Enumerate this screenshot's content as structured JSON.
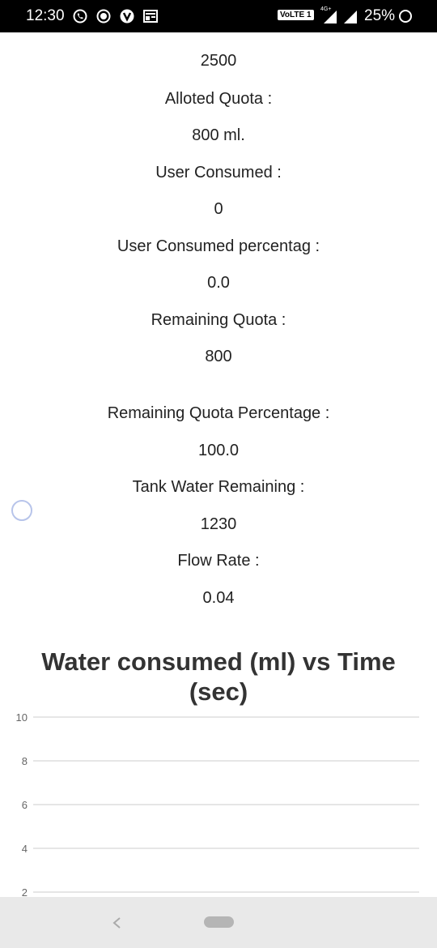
{
  "status_bar": {
    "time": "12:30",
    "network": "VoLTE 1",
    "network_type": "4G+",
    "battery": "25%",
    "icons": [
      "whatsapp-icon",
      "record-icon",
      "vpn-icon",
      "news-icon",
      "signal-icon",
      "battery-icon"
    ]
  },
  "info": {
    "capacity_value": "2500",
    "alloted_quota_label": "Alloted Quota :",
    "alloted_quota_value": "800 ml.",
    "user_consumed_label": "User Consumed :",
    "user_consumed_value": "0",
    "user_consumed_pct_label": "User Consumed percentag :",
    "user_consumed_pct_value": "0.0",
    "remaining_quota_label": "Remaining Quota :",
    "remaining_quota_value": "800",
    "remaining_quota_pct_label": "Remaining Quota Percentage :",
    "remaining_quota_pct_value": "100.0",
    "tank_remaining_label": "Tank Water Remaining :",
    "tank_remaining_value": "1230",
    "flow_rate_label": "Flow Rate :",
    "flow_rate_value": "0.04"
  },
  "chart_data": {
    "type": "line",
    "title": "Water consumed (ml) vs Time (sec)",
    "ylim": [
      2,
      10
    ],
    "y_ticks": [
      "10",
      "8",
      "6",
      "4",
      "2"
    ],
    "series": [],
    "grid": true
  },
  "colors": {
    "status_bar_bg": "#000000",
    "nav_bar_bg": "#e9e9e9",
    "grid_line": "#cccccc",
    "spinner": "#b7c4ea"
  }
}
